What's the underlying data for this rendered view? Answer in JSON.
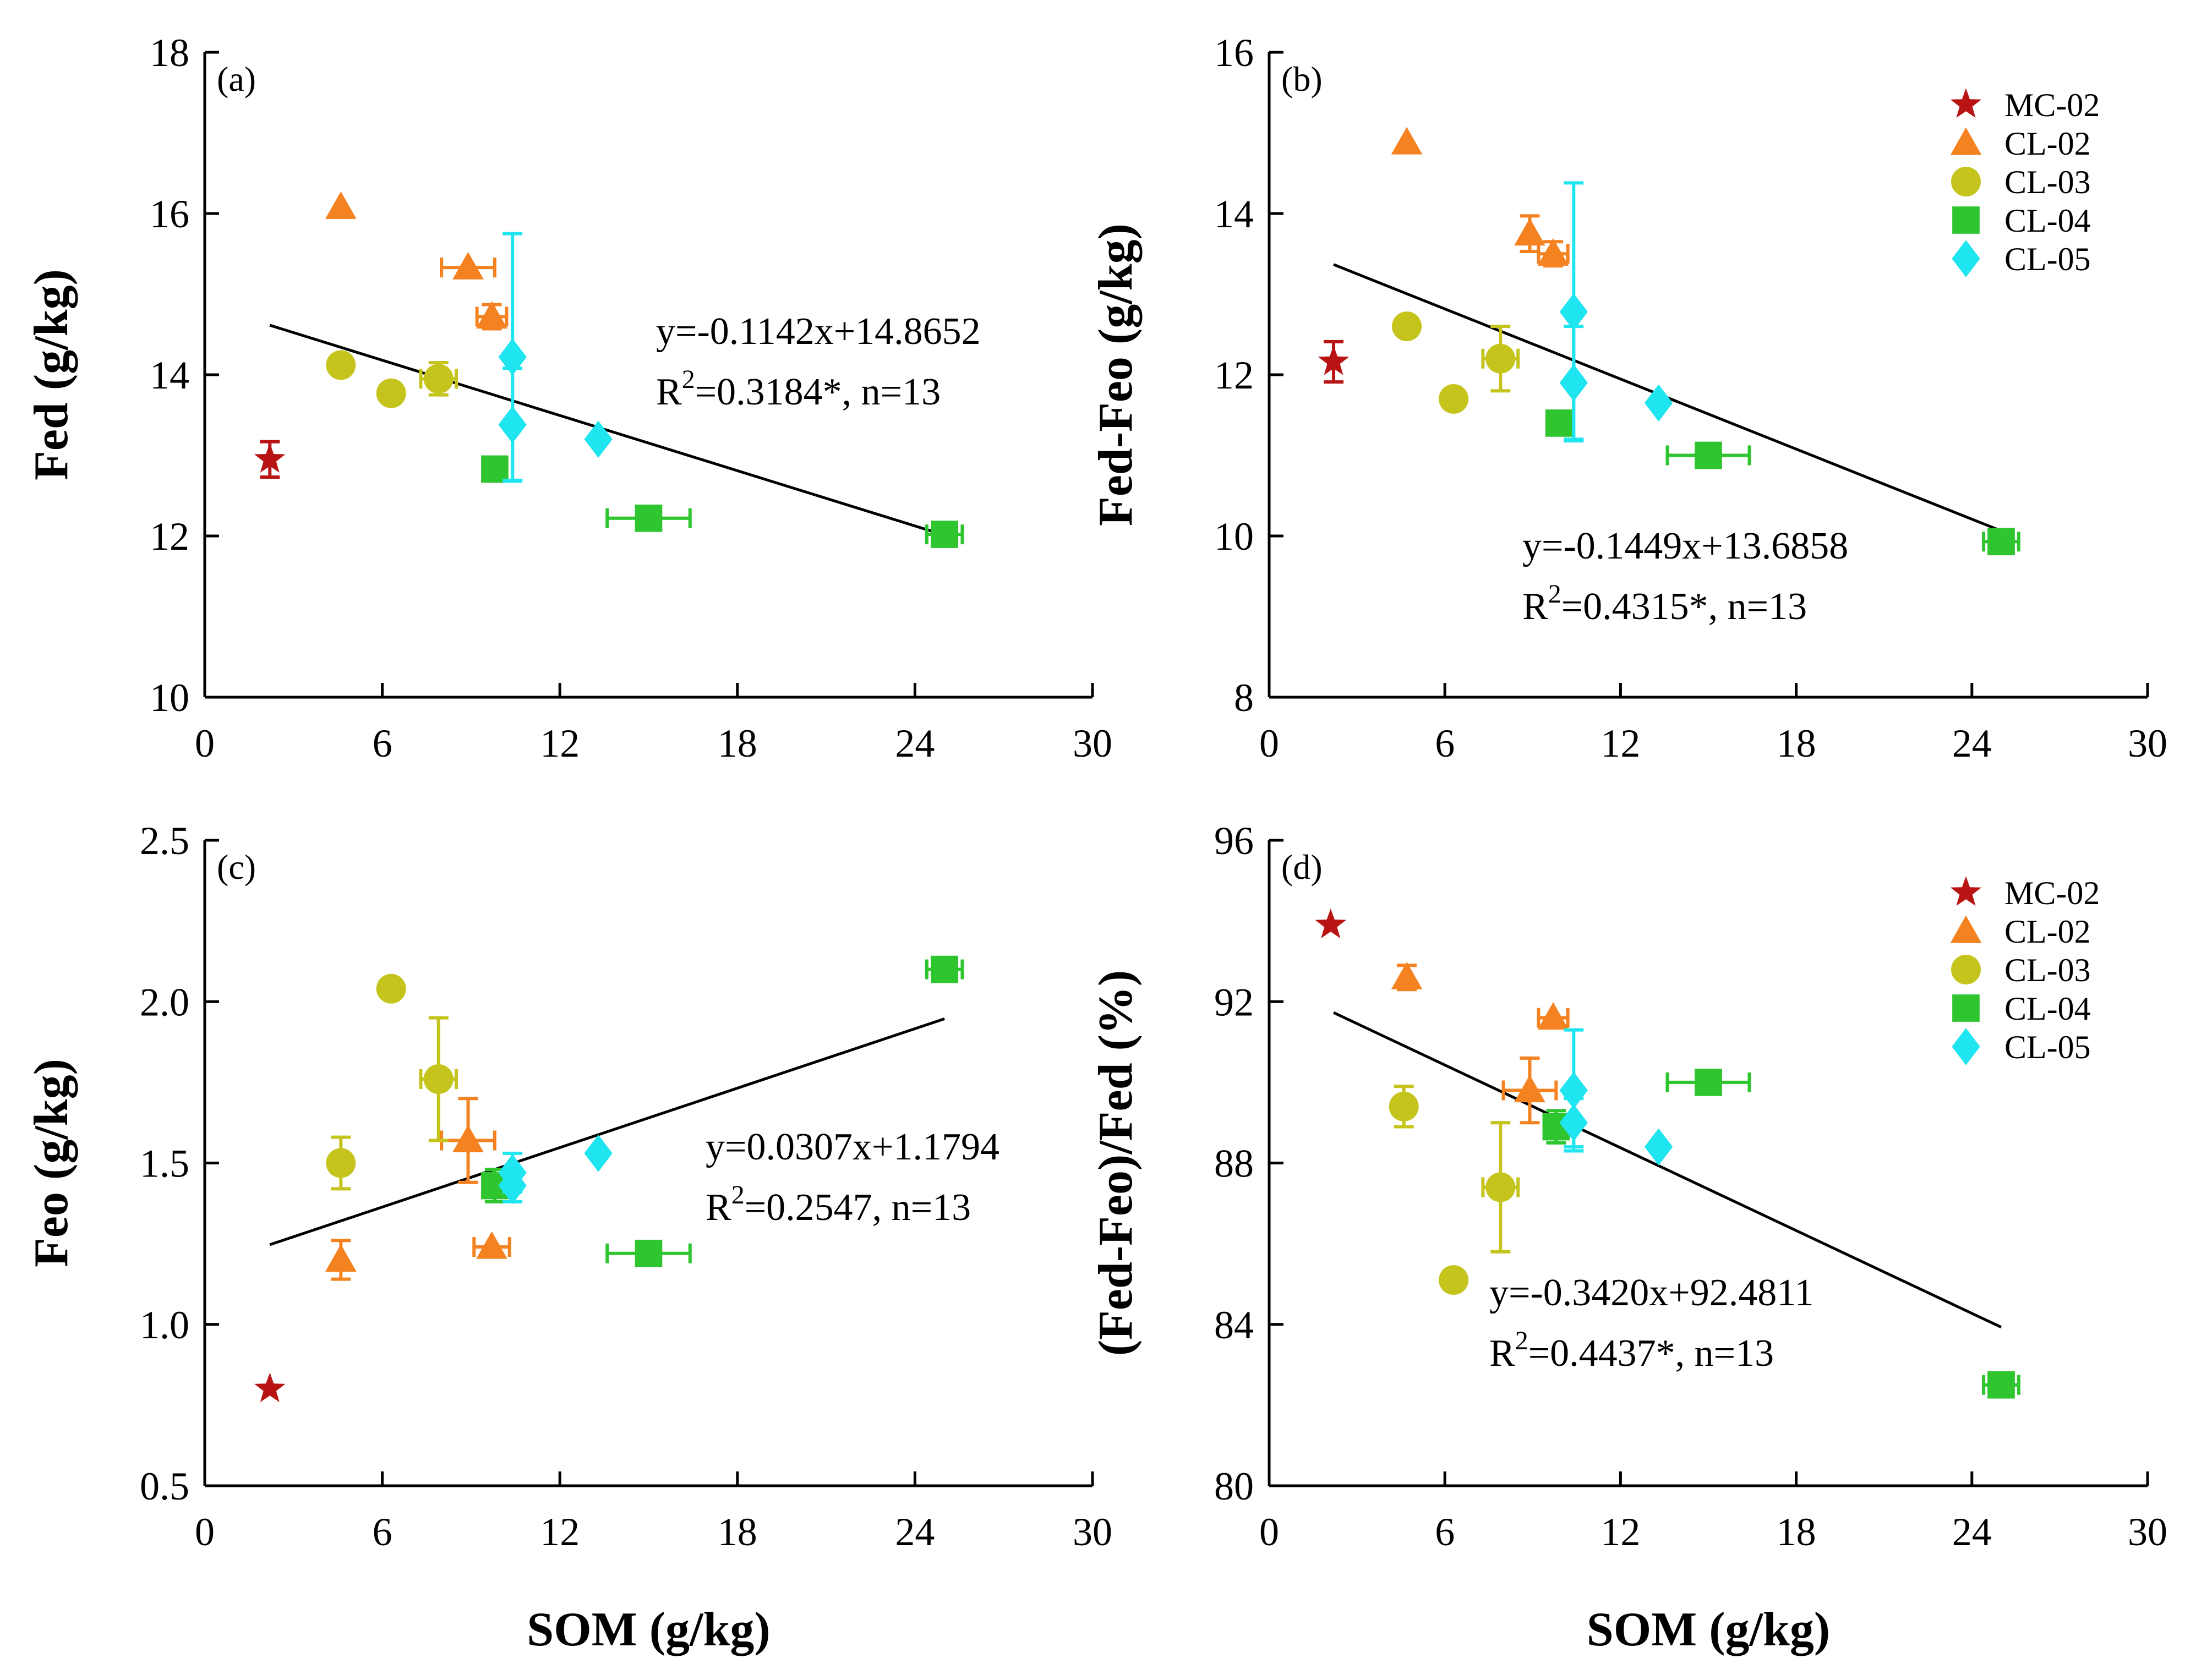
{
  "chart_data": [
    {
      "type": "scatter",
      "panel": "(a)",
      "ylabel": "Fed (g/kg)",
      "xlabel": "",
      "xlim": [
        0,
        30
      ],
      "ylim": [
        10,
        18
      ],
      "xticks": [
        0,
        6,
        12,
        18,
        24,
        30
      ],
      "yticks": [
        10,
        12,
        14,
        16,
        18
      ],
      "fit": {
        "slope": -0.1142,
        "intercept": 14.8652,
        "x_range": [
          2.2,
          25.0
        ],
        "equation": "y=-0.1142x+14.8652",
        "r2_prefix": "R",
        "r2_sup": "2",
        "r2_rest": "=0.3184*, n=13"
      },
      "legend": false,
      "series": [
        {
          "name": "MC-02",
          "marker": "star",
          "color": "#b81414",
          "points": [
            {
              "x": 2.2,
              "y": 12.95,
              "yerr": 0.22
            }
          ]
        },
        {
          "name": "CL-02",
          "marker": "triangle",
          "color": "#f58220",
          "points": [
            {
              "x": 4.6,
              "y": 16.08
            },
            {
              "x": 8.9,
              "y": 15.33,
              "xerr": 0.9
            },
            {
              "x": 9.7,
              "y": 14.72,
              "xerr": 0.5,
              "yerr": 0.15
            }
          ]
        },
        {
          "name": "CL-03",
          "marker": "circle",
          "color": "#c4c41c",
          "points": [
            {
              "x": 4.6,
              "y": 14.12
            },
            {
              "x": 6.3,
              "y": 13.77
            },
            {
              "x": 7.9,
              "y": 13.95,
              "xerr": 0.6,
              "yerr": 0.2
            }
          ]
        },
        {
          "name": "CL-04",
          "marker": "square",
          "color": "#2ec52e",
          "points": [
            {
              "x": 9.8,
              "y": 12.83
            },
            {
              "x": 15.0,
              "y": 12.22,
              "xerr": 1.4
            },
            {
              "x": 25.0,
              "y": 12.02,
              "xerr": 0.6
            }
          ]
        },
        {
          "name": "CL-05",
          "marker": "diamond",
          "color": "#1fe5f0",
          "points": [
            {
              "x": 10.4,
              "y": 14.22,
              "yerr": 1.53
            },
            {
              "x": 10.4,
              "y": 13.38,
              "yerr": 0.7
            },
            {
              "x": 13.3,
              "y": 13.2
            }
          ]
        }
      ]
    },
    {
      "type": "scatter",
      "panel": "(b)",
      "ylabel": "Fed-Feo (g/kg)",
      "xlabel": "",
      "xlim": [
        0,
        30
      ],
      "ylim": [
        8,
        16
      ],
      "xticks": [
        0,
        6,
        12,
        18,
        24,
        30
      ],
      "yticks": [
        8,
        10,
        12,
        14,
        16
      ],
      "fit": {
        "slope": -0.1449,
        "intercept": 13.6858,
        "x_range": [
          2.2,
          25.0
        ],
        "equation": "y=-0.1449x+13.6858",
        "r2_prefix": "R",
        "r2_sup": "2",
        "r2_rest": "=0.4315*, n=13"
      },
      "legend": true,
      "series": [
        {
          "name": "MC-02",
          "marker": "star",
          "color": "#b81414",
          "points": [
            {
              "x": 2.2,
              "y": 12.16,
              "yerr": 0.25
            }
          ]
        },
        {
          "name": "CL-02",
          "marker": "triangle",
          "color": "#f58220",
          "points": [
            {
              "x": 4.7,
              "y": 14.88
            },
            {
              "x": 8.9,
              "y": 13.75,
              "yerr": 0.22
            },
            {
              "x": 9.7,
              "y": 13.5,
              "xerr": 0.5,
              "yerr": 0.15
            }
          ]
        },
        {
          "name": "CL-03",
          "marker": "circle",
          "color": "#c4c41c",
          "points": [
            {
              "x": 4.7,
              "y": 12.6
            },
            {
              "x": 6.3,
              "y": 11.7
            },
            {
              "x": 7.9,
              "y": 12.2,
              "xerr": 0.6,
              "yerr": 0.4
            }
          ]
        },
        {
          "name": "CL-04",
          "marker": "square",
          "color": "#2ec52e",
          "points": [
            {
              "x": 9.9,
              "y": 11.4
            },
            {
              "x": 15.0,
              "y": 11.0,
              "xerr": 1.4
            },
            {
              "x": 25.0,
              "y": 9.93,
              "xerr": 0.6
            }
          ]
        },
        {
          "name": "CL-05",
          "marker": "diamond",
          "color": "#1fe5f0",
          "points": [
            {
              "x": 10.4,
              "y": 12.78,
              "yerr": 1.6
            },
            {
              "x": 10.4,
              "y": 11.9,
              "yerr": 0.7
            },
            {
              "x": 13.3,
              "y": 11.65
            }
          ]
        }
      ]
    },
    {
      "type": "scatter",
      "panel": "(c)",
      "ylabel": "Feo (g/kg)",
      "xlabel": "SOM (g/kg)",
      "xlim": [
        0,
        30
      ],
      "ylim": [
        0.5,
        2.5
      ],
      "xticks": [
        0,
        6,
        12,
        18,
        24,
        30
      ],
      "yticks": [
        0.5,
        1.0,
        1.5,
        2.0,
        2.5
      ],
      "ytick_labels": [
        "0.5",
        "1.0",
        "1.5",
        "2.0",
        "2.5"
      ],
      "fit": {
        "slope": 0.0307,
        "intercept": 1.1794,
        "x_range": [
          2.2,
          25.0
        ],
        "equation": "y=0.0307x+1.1794",
        "r2_prefix": "R",
        "r2_sup": "2",
        "r2_rest": "=0.2547, n=13"
      },
      "legend": false,
      "series": [
        {
          "name": "MC-02",
          "marker": "star",
          "color": "#b81414",
          "points": [
            {
              "x": 2.2,
              "y": 0.8
            }
          ]
        },
        {
          "name": "CL-02",
          "marker": "triangle",
          "color": "#f58220",
          "points": [
            {
              "x": 4.6,
              "y": 1.2,
              "yerr": 0.06
            },
            {
              "x": 8.9,
              "y": 1.57,
              "xerr": 0.9,
              "yerr": 0.13
            },
            {
              "x": 9.7,
              "y": 1.24,
              "xerr": 0.6
            }
          ]
        },
        {
          "name": "CL-03",
          "marker": "circle",
          "color": "#c4c41c",
          "points": [
            {
              "x": 4.6,
              "y": 1.5,
              "yerr": 0.08
            },
            {
              "x": 6.3,
              "y": 2.04
            },
            {
              "x": 7.9,
              "y": 1.76,
              "xerr": 0.6,
              "yerr": 0.19
            }
          ]
        },
        {
          "name": "CL-04",
          "marker": "square",
          "color": "#2ec52e",
          "points": [
            {
              "x": 9.8,
              "y": 1.43,
              "yerr": 0.05
            },
            {
              "x": 15.0,
              "y": 1.22,
              "xerr": 1.4
            },
            {
              "x": 25.0,
              "y": 2.1,
              "xerr": 0.6
            }
          ]
        },
        {
          "name": "CL-05",
          "marker": "diamond",
          "color": "#1fe5f0",
          "points": [
            {
              "x": 10.4,
              "y": 1.47,
              "yerr": 0.06
            },
            {
              "x": 10.4,
              "y": 1.43,
              "yerr": 0.05
            },
            {
              "x": 13.3,
              "y": 1.53
            }
          ]
        }
      ]
    },
    {
      "type": "scatter",
      "panel": "(d)",
      "ylabel": "(Fed-Feo)/Fed (%)",
      "xlabel": "SOM (g/kg)",
      "xlim": [
        0,
        30
      ],
      "ylim": [
        80,
        96
      ],
      "xticks": [
        0,
        6,
        12,
        18,
        24,
        30
      ],
      "yticks": [
        80,
        84,
        88,
        92,
        96
      ],
      "fit": {
        "slope": -0.342,
        "intercept": 92.4811,
        "x_range": [
          2.2,
          25.0
        ],
        "equation": "y=-0.3420x+92.4811",
        "r2_prefix": "R",
        "r2_sup": "2",
        "r2_rest": "=0.4437*, n=13"
      },
      "legend": true,
      "series": [
        {
          "name": "MC-02",
          "marker": "star",
          "color": "#b81414",
          "points": [
            {
              "x": 2.1,
              "y": 93.9
            }
          ]
        },
        {
          "name": "CL-02",
          "marker": "triangle",
          "color": "#f58220",
          "points": [
            {
              "x": 4.7,
              "y": 92.6,
              "yerr": 0.3
            },
            {
              "x": 8.9,
              "y": 89.8,
              "xerr": 0.9,
              "yerr": 0.8
            },
            {
              "x": 9.7,
              "y": 91.6,
              "xerr": 0.5
            }
          ]
        },
        {
          "name": "CL-03",
          "marker": "circle",
          "color": "#c4c41c",
          "points": [
            {
              "x": 4.6,
              "y": 89.4,
              "yerr": 0.5
            },
            {
              "x": 6.3,
              "y": 85.1
            },
            {
              "x": 7.9,
              "y": 87.4,
              "xerr": 0.6,
              "yerr": 1.6
            }
          ]
        },
        {
          "name": "CL-04",
          "marker": "square",
          "color": "#2ec52e",
          "points": [
            {
              "x": 9.8,
              "y": 88.9,
              "yerr": 0.4
            },
            {
              "x": 15.0,
              "y": 90.0,
              "xerr": 1.4
            },
            {
              "x": 25.0,
              "y": 82.5,
              "xerr": 0.6
            }
          ]
        },
        {
          "name": "CL-05",
          "marker": "diamond",
          "color": "#1fe5f0",
          "points": [
            {
              "x": 10.4,
              "y": 89.8,
              "yerr": 1.5
            },
            {
              "x": 10.4,
              "y": 89.0,
              "yerr": 0.6
            },
            {
              "x": 13.3,
              "y": 88.4
            }
          ]
        }
      ]
    }
  ]
}
